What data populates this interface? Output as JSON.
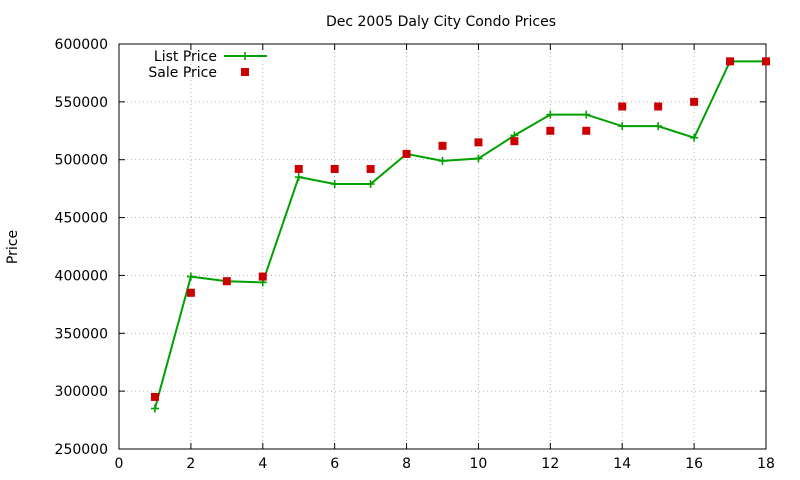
{
  "chart_data": {
    "type": "line",
    "title": "Dec 2005 Daly City Condo Prices",
    "xlabel": "",
    "ylabel": "Price",
    "xlim": [
      0,
      18
    ],
    "ylim": [
      250000,
      600000
    ],
    "xticks": [
      "0",
      "2",
      "4",
      "6",
      "8",
      "10",
      "12",
      "14",
      "16",
      "18"
    ],
    "yticks": [
      "250000",
      "300000",
      "350000",
      "400000",
      "450000",
      "500000",
      "550000",
      "600000"
    ],
    "grid": true,
    "legend_position": "top-left",
    "series": [
      {
        "name": "List Price",
        "style": "linespoints",
        "marker": "plus",
        "color": "#00a000",
        "x": [
          1,
          2,
          3,
          4,
          5,
          6,
          7,
          8,
          9,
          10,
          11,
          12,
          13,
          14,
          15,
          16,
          17,
          18
        ],
        "y": [
          285000,
          399000,
          395000,
          394000,
          485000,
          479000,
          479000,
          505000,
          499000,
          501000,
          521000,
          539000,
          539000,
          529000,
          529000,
          519000,
          585000,
          585000
        ]
      },
      {
        "name": "Sale Price",
        "style": "points",
        "marker": "square",
        "color": "#cc0000",
        "x": [
          1,
          2,
          3,
          4,
          5,
          6,
          7,
          8,
          9,
          10,
          11,
          12,
          13,
          14,
          15,
          16,
          17,
          18
        ],
        "y": [
          295000,
          385000,
          395000,
          399000,
          492000,
          492000,
          492000,
          505000,
          512000,
          515000,
          516000,
          525000,
          525000,
          546000,
          546000,
          550000,
          585000,
          585000
        ]
      }
    ]
  }
}
